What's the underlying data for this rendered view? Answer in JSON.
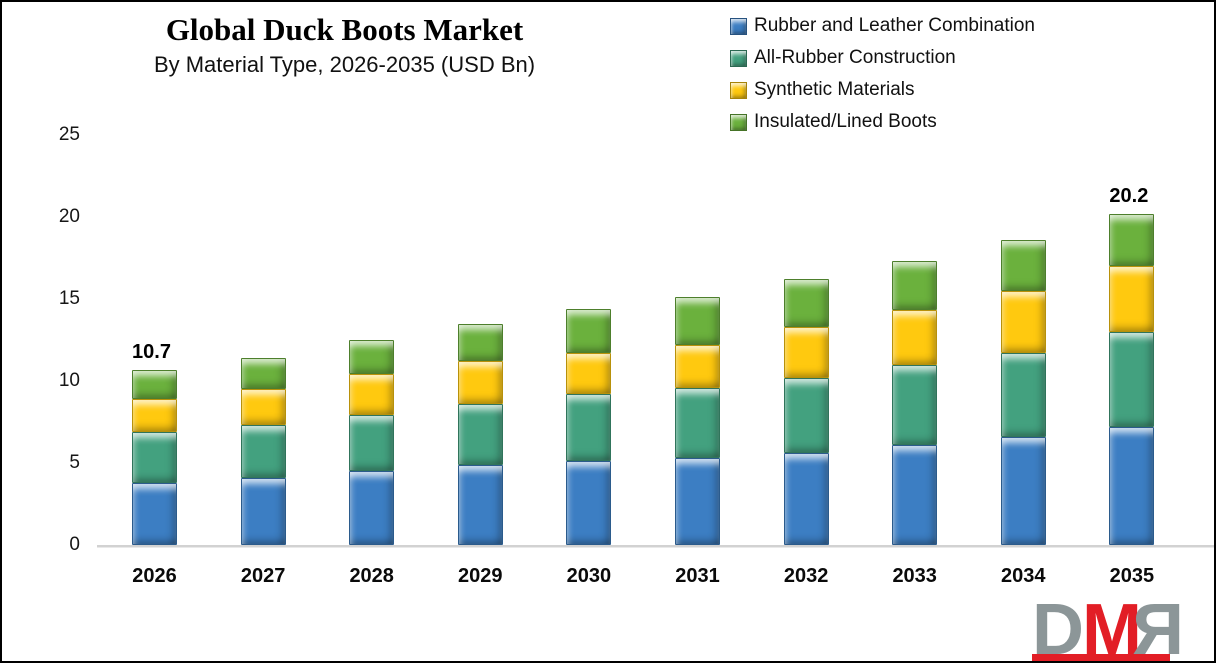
{
  "title": "Global Duck Boots Market",
  "subtitle": "By Material Type, 2026-2035 (USD Bn)",
  "chart_data": {
    "type": "bar",
    "stacked": true,
    "title": "Global Duck Boots Market",
    "subtitle": "By Material Type, 2026-2035 (USD Bn)",
    "unit": "USD Bn",
    "categories": [
      "2026",
      "2027",
      "2028",
      "2029",
      "2030",
      "2031",
      "2032",
      "2033",
      "2034",
      "2035"
    ],
    "series": [
      {
        "name": "Rubber and Leather Combination",
        "color": "#3C7EC3",
        "values": [
          3.8,
          4.1,
          4.5,
          4.9,
          5.1,
          5.3,
          5.6,
          6.1,
          6.6,
          7.2
        ]
      },
      {
        "name": "All-Rubber Construction",
        "color": "#43A17F",
        "values": [
          3.1,
          3.2,
          3.4,
          3.7,
          4.1,
          4.3,
          4.6,
          4.9,
          5.1,
          5.8
        ]
      },
      {
        "name": "Synthetic Materials",
        "color": "#FFC90F",
        "values": [
          2.0,
          2.2,
          2.5,
          2.6,
          2.5,
          2.6,
          3.1,
          3.3,
          3.8,
          4.0
        ]
      },
      {
        "name": "Insulated/Lined Boots",
        "color": "#6BB13D",
        "values": [
          1.8,
          1.9,
          2.1,
          2.3,
          2.7,
          2.9,
          2.9,
          3.0,
          3.1,
          3.2
        ]
      }
    ],
    "totals": [
      10.7,
      11.4,
      12.5,
      13.5,
      14.4,
      15.1,
      16.2,
      17.3,
      18.6,
      20.2
    ],
    "bar_labels": {
      "2026": "10.7",
      "2035": "20.2"
    },
    "ylim": [
      0,
      25
    ],
    "y_ticks": [
      0,
      5,
      10,
      15,
      20,
      25
    ],
    "grid": false,
    "legend_position": "top-right"
  },
  "logo": {
    "letters": {
      "d": "D",
      "m": "M",
      "r": "R"
    },
    "gray": "#8C9698",
    "red": "#E21E26"
  }
}
